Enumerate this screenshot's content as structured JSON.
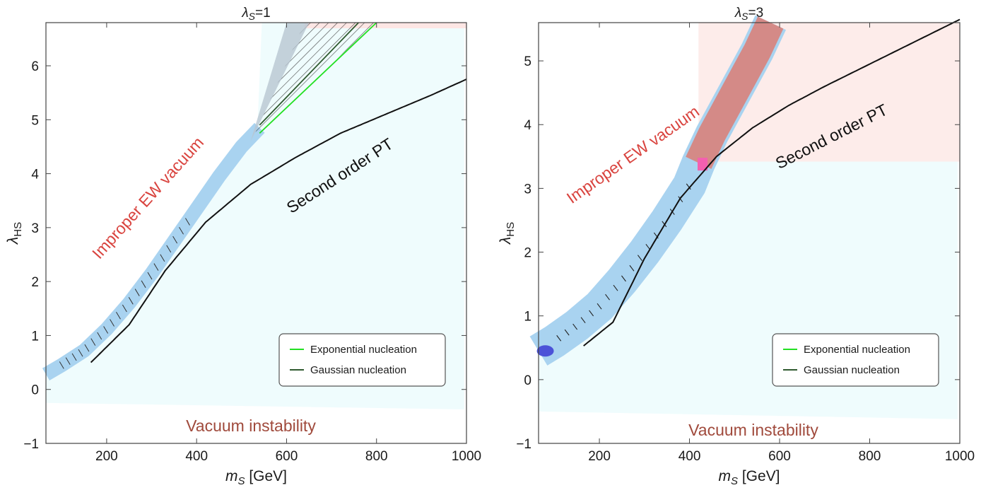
{
  "chart_data": [
    {
      "type": "line",
      "title": "λS=1",
      "title_symbol": "λ",
      "title_sub": "S",
      "title_rest": "=1",
      "xlabel": "mS [GeV]",
      "ylabel": "λHS",
      "xlim": [
        65,
        1000
      ],
      "ylim": [
        -1,
        6.8
      ],
      "xticks": [
        200,
        400,
        600,
        800,
        1000
      ],
      "yticks": [
        -1,
        0,
        1,
        2,
        3,
        4,
        5,
        6
      ],
      "annotations": [
        "Improper EW vacuum",
        "Second order PT",
        "Vacuum instability"
      ],
      "legend": [
        {
          "label": "Exponential nucleation",
          "color": "#22e022"
        },
        {
          "label": "Gaussian nucleation",
          "color": "#2f5a2f"
        }
      ],
      "second_order_line": {
        "x": [
          165,
          250,
          330,
          420,
          520,
          620,
          720,
          820,
          920,
          1000
        ],
        "y": [
          0.5,
          1.2,
          2.2,
          3.1,
          3.8,
          4.3,
          4.75,
          5.1,
          5.45,
          5.75
        ]
      },
      "band_center": {
        "x": [
          65,
          100,
          150,
          200,
          250,
          300,
          350,
          400,
          450,
          500,
          540
        ],
        "y": [
          0.28,
          0.45,
          0.72,
          1.12,
          1.6,
          2.15,
          2.75,
          3.35,
          3.95,
          4.5,
          4.85
        ]
      },
      "exp_nucleation_line": {
        "x": [
          540,
          800
        ],
        "y": [
          4.75,
          6.8
        ]
      },
      "gauss_nucleation_line": {
        "x": [
          540,
          760
        ],
        "y": [
          4.9,
          6.8
        ]
      },
      "vacuum_bottom": {
        "x": [
          65,
          1000
        ],
        "y": [
          -0.25,
          -0.37
        ]
      }
    },
    {
      "type": "line",
      "title": "λS=3",
      "title_symbol": "λ",
      "title_sub": "S",
      "title_rest": "=3",
      "xlabel": "mS [GeV]",
      "ylabel": "λHS",
      "xlim": [
        65,
        1000
      ],
      "ylim": [
        -1,
        5.6
      ],
      "xticks": [
        200,
        400,
        600,
        800,
        1000
      ],
      "yticks": [
        -1,
        0,
        1,
        2,
        3,
        4,
        5
      ],
      "annotations": [
        "Improper EW vacuum",
        "Second order PT",
        "Vacuum instability"
      ],
      "legend": [
        {
          "label": "Exponential nucleation",
          "color": "#22e022"
        },
        {
          "label": "Gaussian nucleation",
          "color": "#2f5a2f"
        }
      ],
      "second_order_line": {
        "x": [
          165,
          230,
          300,
          380,
          460,
          540,
          620,
          700,
          800,
          900,
          1000
        ],
        "y": [
          0.53,
          0.9,
          1.9,
          2.85,
          3.5,
          3.95,
          4.3,
          4.6,
          4.95,
          5.3,
          5.65
        ]
      },
      "band_center": {
        "x": [
          65,
          100,
          150,
          200,
          250,
          300,
          350,
          400,
          420,
          450,
          500,
          550,
          580
        ],
        "y": [
          0.45,
          0.6,
          0.85,
          1.15,
          1.55,
          2.0,
          2.5,
          3.05,
          3.4,
          3.85,
          4.5,
          5.15,
          5.6
        ]
      },
      "pink_region": {
        "x": [
          420,
          1000
        ],
        "y_low": 3.42
      },
      "vacuum_bottom": {
        "x": [
          65,
          1000
        ],
        "y": [
          -0.5,
          -0.62
        ]
      }
    }
  ]
}
